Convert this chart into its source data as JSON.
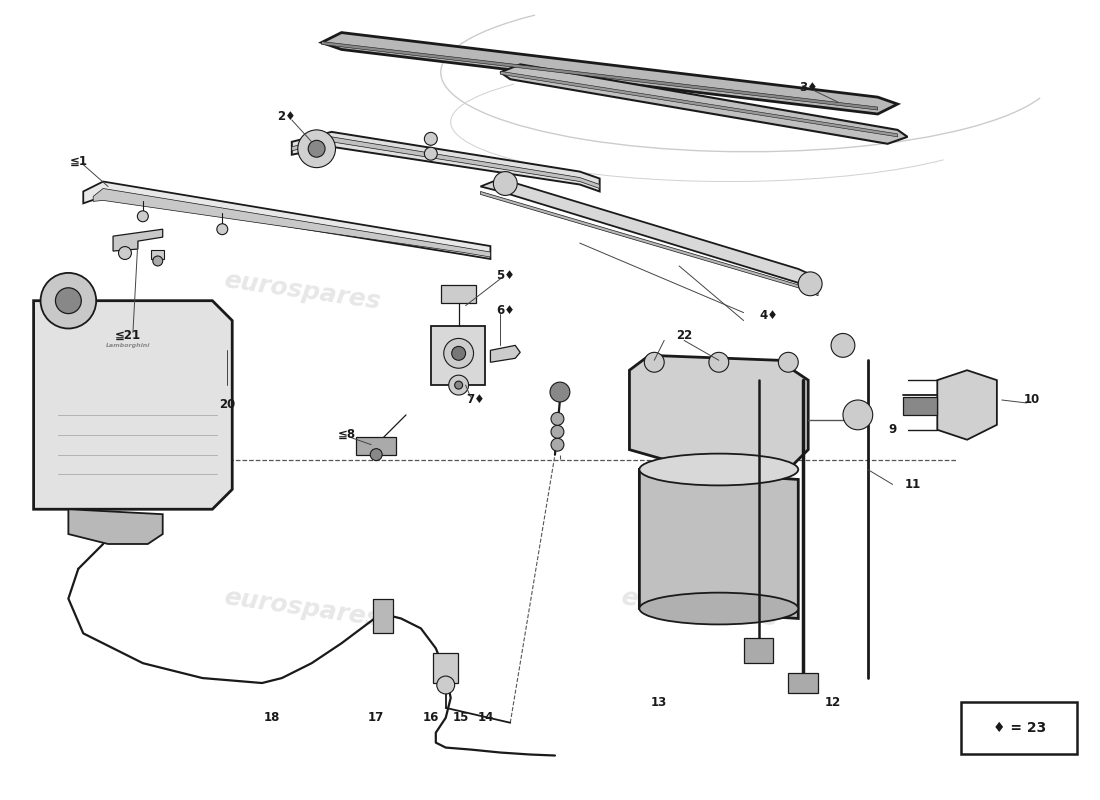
{
  "bg": "#ffffff",
  "lc": "#1a1a1a",
  "watermark": "eurospares",
  "legend": "♦ = 23"
}
